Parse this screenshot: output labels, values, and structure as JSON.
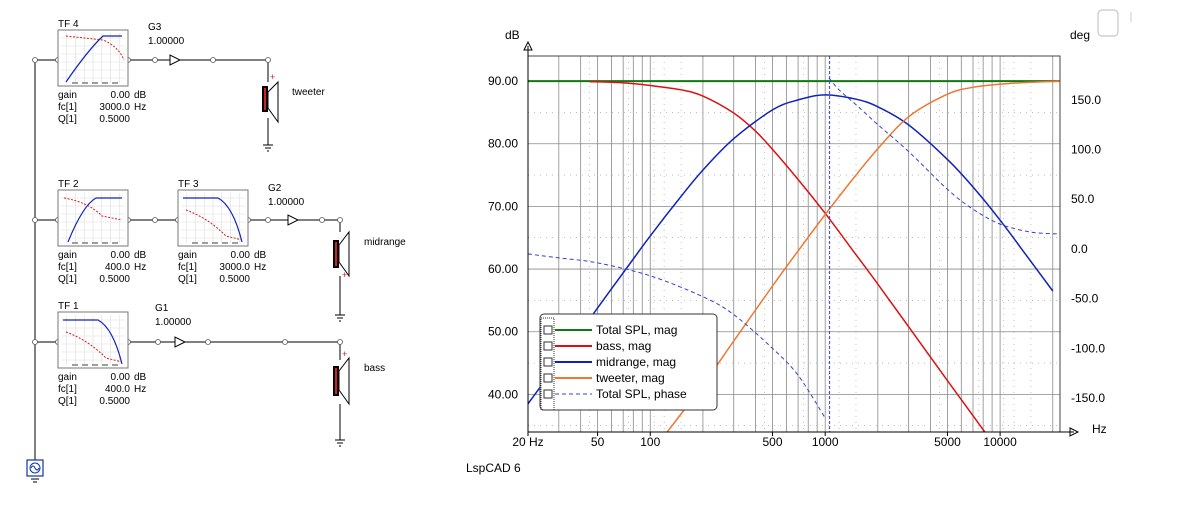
{
  "app": {
    "name": "LspCAD 6"
  },
  "schematic": {
    "blocks": [
      {
        "id": "tf4",
        "label": "TF 4",
        "params": [
          [
            "gain",
            "0.00",
            "dB"
          ],
          [
            "fc[1]",
            "3000.0",
            "Hz"
          ],
          [
            "Q[1]",
            "0.5000",
            ""
          ]
        ]
      },
      {
        "id": "tf2",
        "label": "TF 2",
        "params": [
          [
            "gain",
            "0.00",
            "dB"
          ],
          [
            "fc[1]",
            "400.0",
            "Hz"
          ],
          [
            "Q[1]",
            "0.5000",
            ""
          ]
        ]
      },
      {
        "id": "tf3",
        "label": "TF 3",
        "params": [
          [
            "gain",
            "0.00",
            "dB"
          ],
          [
            "fc[1]",
            "3000.0",
            "Hz"
          ],
          [
            "Q[1]",
            "0.5000",
            ""
          ]
        ]
      },
      {
        "id": "tf1",
        "label": "TF 1",
        "params": [
          [
            "gain",
            "0.00",
            "dB"
          ],
          [
            "fc[1]",
            "400.0",
            "Hz"
          ],
          [
            "Q[1]",
            "0.5000",
            ""
          ]
        ]
      }
    ],
    "gains": [
      {
        "id": "g3",
        "label": "G3",
        "value": "1.00000"
      },
      {
        "id": "g2",
        "label": "G2",
        "value": "1.00000"
      },
      {
        "id": "g1",
        "label": "G1",
        "value": "1.00000"
      }
    ],
    "drivers": [
      {
        "id": "tweeter",
        "label": "tweeter"
      },
      {
        "id": "midrange",
        "label": "midrange"
      },
      {
        "id": "bass",
        "label": "bass"
      }
    ]
  },
  "chart_data": {
    "type": "line",
    "x_scale": "log",
    "xlim": [
      20,
      22000
    ],
    "ylim": [
      34,
      94
    ],
    "y2lim": [
      -184,
      194
    ],
    "xlabel": "Hz",
    "ylabel": "dB",
    "y2label": "deg",
    "x_ticks": [
      {
        "value": 20,
        "label": "20 Hz"
      },
      {
        "value": 50,
        "label": "50"
      },
      {
        "value": 100,
        "label": "100"
      },
      {
        "value": 500,
        "label": "500"
      },
      {
        "value": 1000,
        "label": "1000"
      },
      {
        "value": 5000,
        "label": "5000"
      },
      {
        "value": 10000,
        "label": "10000"
      }
    ],
    "y_ticks": [
      "40.00",
      "50.00",
      "60.00",
      "70.00",
      "80.00",
      "90.00"
    ],
    "y2_ticks": [
      "-150.0",
      "-100.0",
      "-50.0",
      "0.0",
      "50.0",
      "100.0",
      "150.0"
    ],
    "cursor_x": 1060,
    "legend_position": "bottom-left",
    "series": [
      {
        "name": "Total SPL, mag",
        "axis": "left",
        "color": "#117711",
        "width": 2,
        "x": [
          20,
          50,
          100,
          500,
          1000,
          5000,
          10000,
          22000
        ],
        "y": [
          90,
          90,
          90,
          90,
          90,
          90,
          90,
          90
        ]
      },
      {
        "name": "bass, mag",
        "axis": "left",
        "color": "#dd1111",
        "width": 1.5,
        "x": [
          45,
          60,
          80,
          100,
          150,
          200,
          300,
          400,
          500,
          700,
          1000,
          1500,
          2000,
          3000,
          5000,
          7000,
          10000
        ],
        "y": [
          89.9,
          89.8,
          89.6,
          89.3,
          88.6,
          87.6,
          84.9,
          82.0,
          79.1,
          74.3,
          68.9,
          62.3,
          57.6,
          50.8,
          42.2,
          36.6,
          30.6
        ]
      },
      {
        "name": "midrange, mag",
        "axis": "left",
        "color": "#1122bb",
        "width": 1.5,
        "x": [
          20,
          30,
          50,
          80,
          100,
          150,
          200,
          300,
          500,
          700,
          1000,
          1500,
          2000,
          3000,
          5000,
          7000,
          10000,
          15000,
          20000
        ],
        "y": [
          38.5,
          45.2,
          53.8,
          61.6,
          65.3,
          71.6,
          75.8,
          80.8,
          85.4,
          87.0,
          87.8,
          87.1,
          85.9,
          83.0,
          77.5,
          73.1,
          67.8,
          61.2,
          56.5
        ]
      },
      {
        "name": "tweeter, mag",
        "axis": "left",
        "color": "#ee7733",
        "width": 1.5,
        "x": [
          125,
          200,
          300,
          500,
          700,
          1000,
          1500,
          2000,
          3000,
          5000,
          7000,
          10000,
          15000,
          22000
        ],
        "y": [
          34.0,
          41.5,
          48.5,
          57.3,
          62.9,
          68.7,
          75.0,
          79.2,
          84.3,
          87.9,
          89.0,
          89.5,
          89.8,
          90.0
        ]
      },
      {
        "name": "Total SPL, phase",
        "axis": "right",
        "color": "#3344cc",
        "width": 1,
        "dash": "4,3",
        "x": [
          20,
          30,
          50,
          100,
          200,
          300,
          500,
          700,
          1000,
          1050,
          1200,
          1500,
          2000,
          3000,
          5000,
          7000,
          10000,
          15000,
          22000
        ],
        "y": [
          -5,
          -9,
          -14,
          -27,
          -48,
          -66,
          -100,
          -127,
          -170,
          172,
          160,
          145,
          125,
          98,
          60,
          40,
          25,
          17,
          15
        ]
      }
    ]
  }
}
